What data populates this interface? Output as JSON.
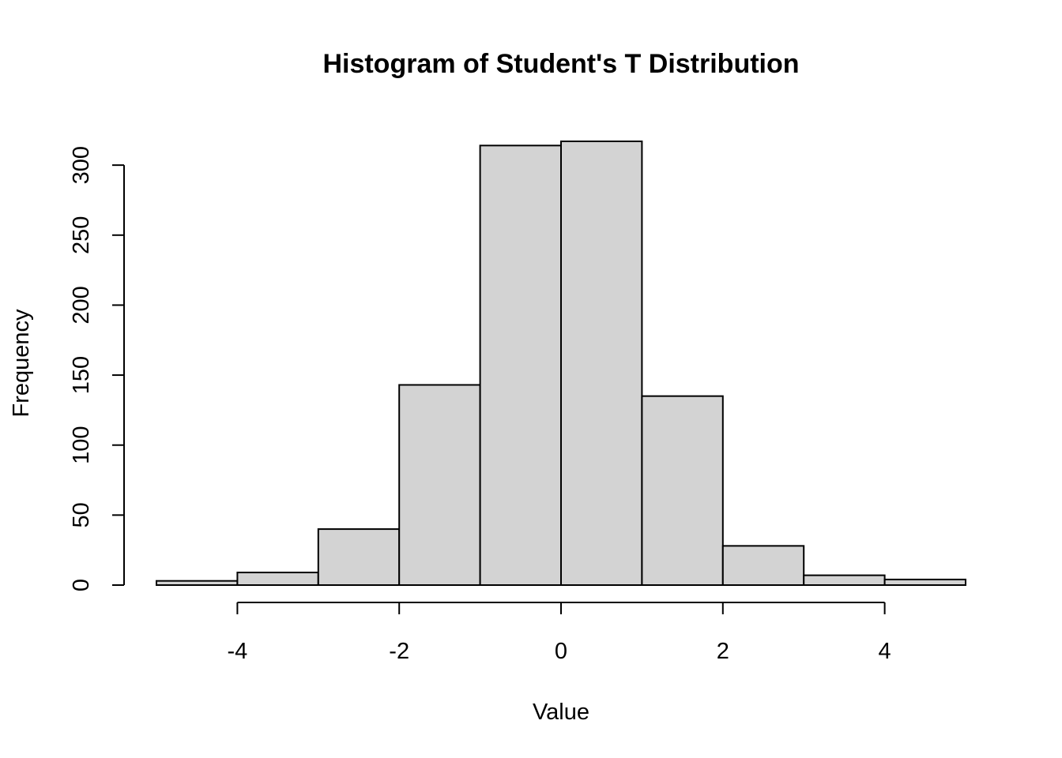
{
  "chart_data": {
    "type": "bar",
    "title": "Histogram of Student's T Distribution",
    "xlabel": "Value",
    "ylabel": "Frequency",
    "bins": [
      {
        "x0": -5,
        "x1": -4,
        "count": 3
      },
      {
        "x0": -4,
        "x1": -3,
        "count": 9
      },
      {
        "x0": -3,
        "x1": -2,
        "count": 40
      },
      {
        "x0": -2,
        "x1": -1,
        "count": 143
      },
      {
        "x0": -1,
        "x1": 0,
        "count": 314
      },
      {
        "x0": 0,
        "x1": 1,
        "count": 317
      },
      {
        "x0": 1,
        "x1": 2,
        "count": 135
      },
      {
        "x0": 2,
        "x1": 3,
        "count": 28
      },
      {
        "x0": 3,
        "x1": 4,
        "count": 7
      },
      {
        "x0": 4,
        "x1": 5,
        "count": 4
      }
    ],
    "xticks": [
      -4,
      -2,
      0,
      2,
      4
    ],
    "xtick_labels": [
      "-4",
      "-2",
      "0",
      "2",
      "4"
    ],
    "yticks": [
      0,
      50,
      100,
      150,
      200,
      250,
      300
    ],
    "ytick_labels": [
      "0",
      "50",
      "100",
      "150",
      "200",
      "250",
      "300"
    ],
    "xlim": [
      -5,
      5
    ],
    "ylim": [
      0,
      317
    ],
    "grid": false,
    "bar_color": "#d3d3d3",
    "edge_color": "#000000"
  }
}
